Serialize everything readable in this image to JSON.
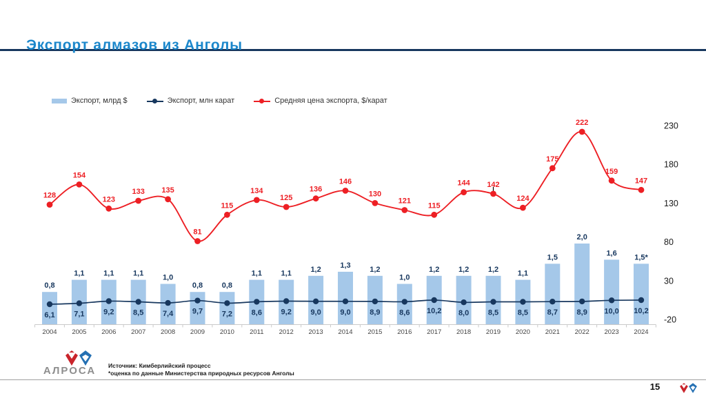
{
  "slide": {
    "title": "Экспорт алмазов из Анголы",
    "page_number": "15",
    "footer": {
      "logo_text": "АЛРОСА",
      "source_line1": "Источник: Кимберлийский процесс",
      "source_line2": "*оценка по данные Министерства природных ресурсов Анголы"
    }
  },
  "colors": {
    "title_blue": "#1B87CB",
    "navy": "#17375E",
    "bar_fill": "#A5C8E9",
    "red": "#ED1F24",
    "axis_gray": "#C9C9C9",
    "year_text": "#444444",
    "logo_red": "#C9242B",
    "logo_blue": "#2470B3"
  },
  "chart_data": {
    "type": "combo",
    "title": "Экспорт алмазов из Анголы",
    "categories": [
      "2004",
      "2005",
      "2006",
      "2007",
      "2008",
      "2009",
      "2010",
      "2011",
      "2012",
      "2013",
      "2014",
      "2015",
      "2016",
      "2017",
      "2018",
      "2019",
      "2020",
      "2021",
      "2022",
      "2023",
      "2024"
    ],
    "series": [
      {
        "name": "Экспорт, млрд $",
        "type": "bar",
        "values": [
          0.8,
          1.1,
          1.1,
          1.1,
          1.0,
          0.8,
          0.8,
          1.1,
          1.1,
          1.2,
          1.3,
          1.2,
          1.0,
          1.2,
          1.2,
          1.2,
          1.1,
          1.5,
          2.0,
          1.6,
          1.5
        ],
        "labels": [
          "0,8",
          "1,1",
          "1,1",
          "1,1",
          "1,0",
          "0,8",
          "0,8",
          "1,1",
          "1,1",
          "1,2",
          "1,3",
          "1,2",
          "1,0",
          "1,2",
          "1,2",
          "1,2",
          "1,1",
          "1,5",
          "2,0",
          "1,6",
          "1,5*"
        ]
      },
      {
        "name": "Экспорт, млн карат",
        "type": "line",
        "values": [
          6.1,
          7.1,
          9.2,
          8.5,
          7.4,
          9.7,
          7.2,
          8.6,
          9.2,
          9.0,
          9.0,
          8.9,
          8.6,
          10.2,
          8.0,
          8.5,
          8.5,
          8.7,
          8.9,
          10.0,
          10.2
        ],
        "labels": [
          "6,1",
          "7,1",
          "9,2",
          "8,5",
          "7,4",
          "9,7",
          "7,2",
          "8,6",
          "9,2",
          "9,0",
          "9,0",
          "8,9",
          "8,6",
          "10,2",
          "8,0",
          "8,5",
          "8,5",
          "8,7",
          "8,9",
          "10,0",
          "10,2"
        ]
      },
      {
        "name": "Средняя цена экспорта, $/карат",
        "type": "line",
        "values": [
          128,
          154,
          123,
          133,
          135,
          81,
          115,
          134,
          125,
          136,
          146,
          130,
          121,
          115,
          144,
          142,
          124,
          175,
          222,
          159,
          147
        ],
        "labels": [
          "128",
          "154",
          "123",
          "133",
          "135",
          "81",
          "115",
          "134",
          "125",
          "136",
          "146",
          "130",
          "121",
          "115",
          "144",
          "142",
          "124",
          "175",
          "222",
          "159",
          "147"
        ]
      }
    ],
    "right_axis_ticks": [
      230,
      180,
      130,
      80,
      30,
      -20
    ],
    "right_axis_range": [
      -20,
      230
    ],
    "grid": false,
    "legend_position": "top-left",
    "footnote_marker_year": "2024"
  }
}
